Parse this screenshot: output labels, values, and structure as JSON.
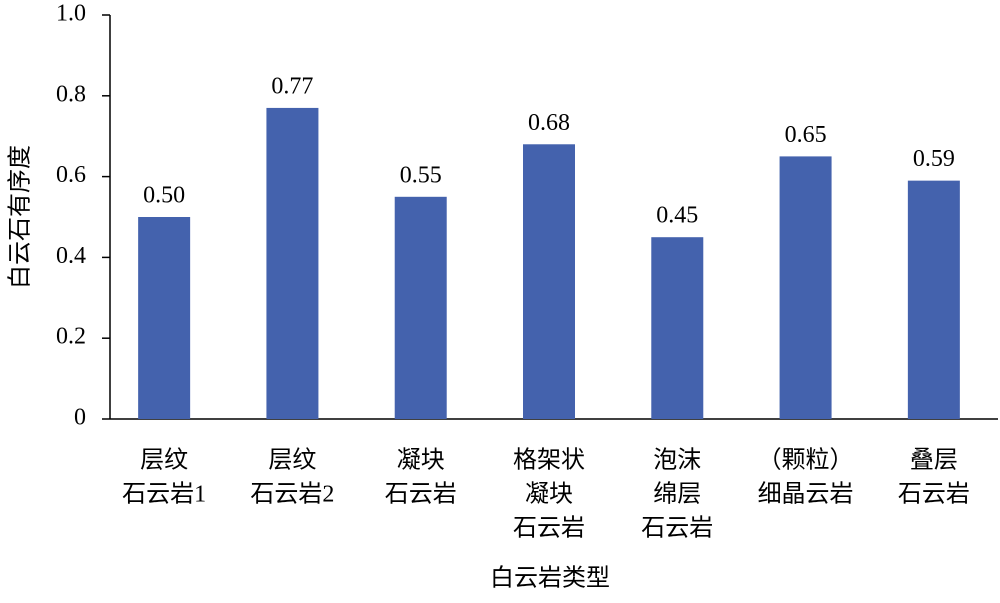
{
  "chart_data": {
    "type": "bar",
    "x_label": "白云岩类型",
    "y_label": "白云石有序度",
    "categories": [
      [
        "层纹",
        "石云岩1"
      ],
      [
        "层纹",
        "石云岩2"
      ],
      [
        "凝块",
        "石云岩"
      ],
      [
        "格架状",
        "凝块",
        "石云岩"
      ],
      [
        "泡沫",
        "绵层",
        "石云岩"
      ],
      [
        "（颗粒）",
        "细晶云岩"
      ],
      [
        "叠层",
        "石云岩"
      ]
    ],
    "values": [
      0.5,
      0.77,
      0.55,
      0.68,
      0.45,
      0.65,
      0.59
    ],
    "value_labels": [
      "0.50",
      "0.77",
      "0.55",
      "0.68",
      "0.45",
      "0.65",
      "0.59"
    ],
    "color": "#4462ad",
    "ylim": [
      0,
      1
    ],
    "yticks": [
      0,
      0.2,
      0.4,
      0.6,
      0.8,
      {
        "value": 1,
        "label": "1.0"
      }
    ]
  }
}
